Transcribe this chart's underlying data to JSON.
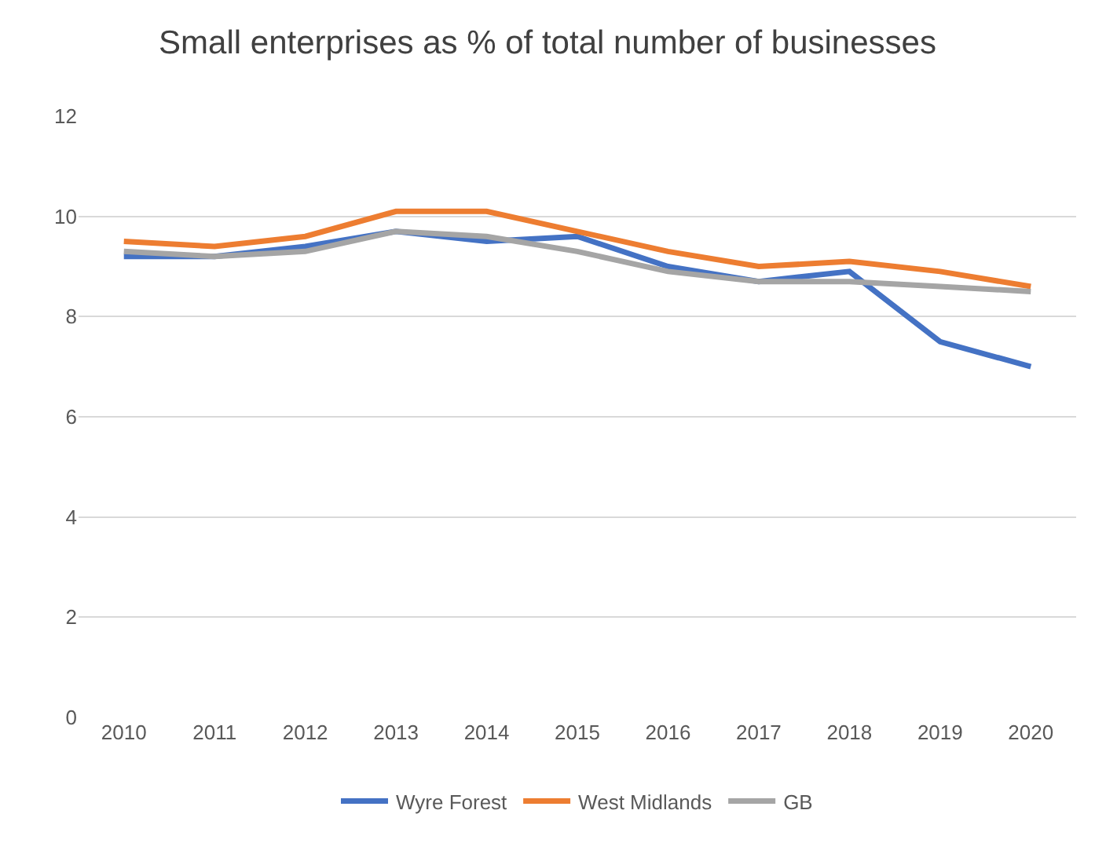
{
  "chart_data": {
    "type": "line",
    "title": "Small enterprises as % of total number of businesses",
    "categories": [
      "2010",
      "2011",
      "2012",
      "2013",
      "2014",
      "2015",
      "2016",
      "2017",
      "2018",
      "2019",
      "2020"
    ],
    "series": [
      {
        "name": "Wyre Forest",
        "color": "#4472c4",
        "values": [
          9.2,
          9.2,
          9.4,
          9.7,
          9.5,
          9.6,
          9.0,
          8.7,
          8.9,
          7.5,
          7.0
        ]
      },
      {
        "name": "West Midlands",
        "color": "#ed7d31",
        "values": [
          9.5,
          9.4,
          9.6,
          10.1,
          10.1,
          9.7,
          9.3,
          9.0,
          9.1,
          8.9,
          8.6
        ]
      },
      {
        "name": "GB",
        "color": "#a5a5a5",
        "values": [
          9.3,
          9.2,
          9.3,
          9.7,
          9.6,
          9.3,
          8.9,
          8.7,
          8.7,
          8.6,
          8.5
        ]
      }
    ],
    "ylim": [
      0,
      12
    ],
    "yticks": [
      0,
      2,
      4,
      6,
      8,
      10,
      12
    ],
    "grid": "y",
    "legend": "bottom",
    "marker": "none",
    "line_style": "solid"
  }
}
